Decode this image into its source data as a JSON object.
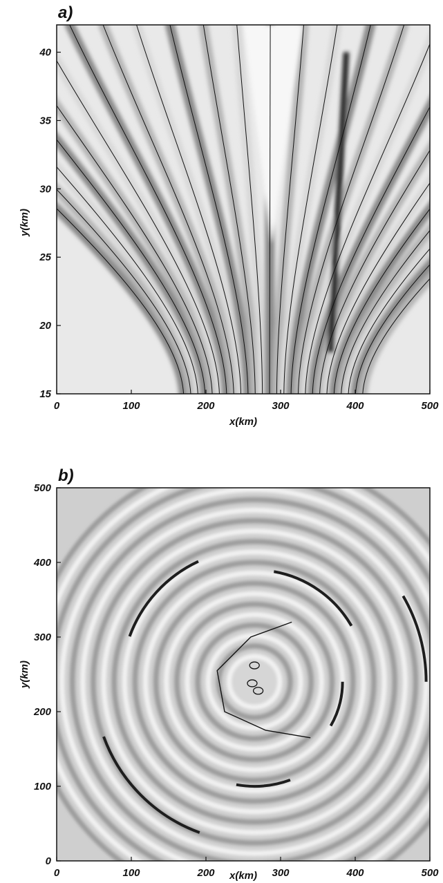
{
  "chart_data": [
    {
      "type": "heatmap",
      "panel_label": "a)",
      "xlabel": "x(km)",
      "ylabel": "y(km)",
      "xlim": [
        0,
        500
      ],
      "ylim": [
        15,
        42
      ],
      "xticks": [
        0,
        100,
        200,
        300,
        400,
        500
      ],
      "yticks": [
        15,
        20,
        25,
        30,
        35,
        40
      ],
      "grid": false,
      "colormap": "grayscale",
      "contours": "streamlines diverging upward from the lower centre (x≈250–300 km, y≈15 km), with a V-shaped clear region near x≈280 km and a dark band along x≈360–380 km"
    },
    {
      "type": "heatmap",
      "panel_label": "b)",
      "xlabel": "x(km)",
      "ylabel": "y(km)",
      "xlim": [
        0,
        500
      ],
      "ylim": [
        0,
        500
      ],
      "xticks": [
        0,
        100,
        200,
        300,
        400,
        500
      ],
      "yticks": [
        0,
        100,
        200,
        300,
        400,
        500
      ],
      "grid": false,
      "colormap": "grayscale",
      "pattern": "concentric circular rings centred near (270, 240) km with a single black contour around the centre and dark arcs on several rings"
    }
  ],
  "colors": {
    "ink": "#111111",
    "light": "#f2f2f2",
    "mid": "#b8b8b8",
    "dark": "#3a3a3a"
  }
}
